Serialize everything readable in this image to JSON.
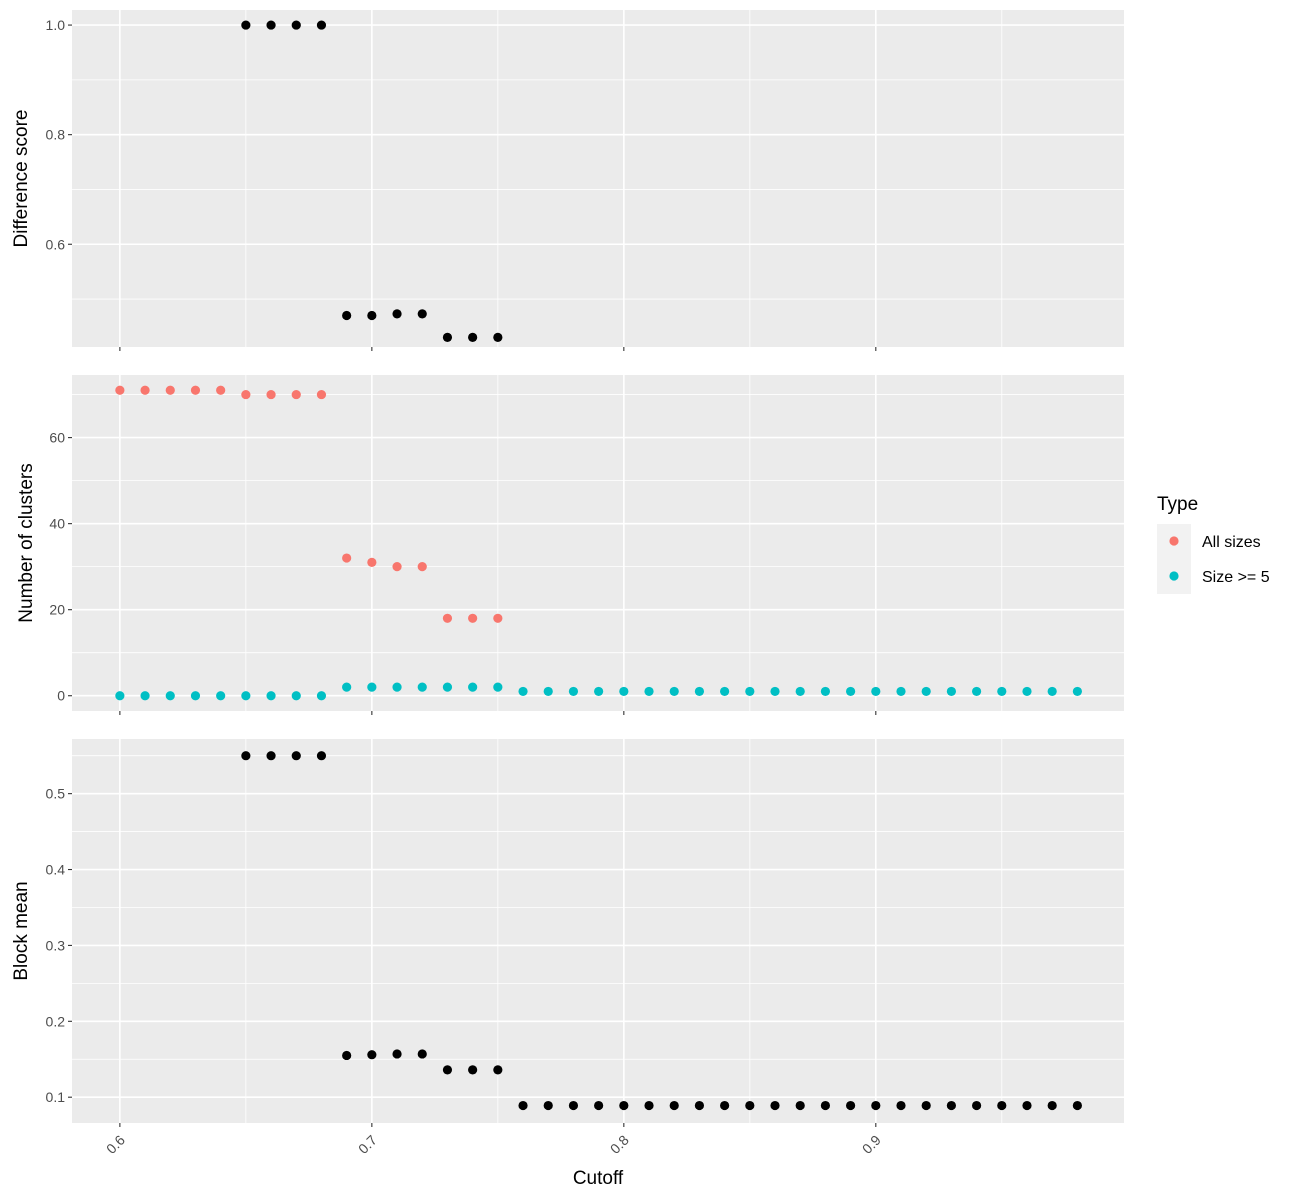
{
  "chart_data": {
    "type": "scatter",
    "xlabel": "Cutoff",
    "x_ticks": [
      "0.6",
      "0.7",
      "0.8",
      "0.9"
    ],
    "xlim": [
      0.581,
      0.9985
    ],
    "panels": [
      {
        "ylabel": "Difference score",
        "ylim": [
          0.4125,
          1.0275
        ],
        "y_ticks": [
          "0.6",
          "0.8",
          "1.0"
        ],
        "y_tick_values": [
          0.6,
          0.8,
          1.0
        ],
        "y_minor": [
          0.5,
          0.7,
          0.9
        ],
        "series": [
          {
            "color": "#000000",
            "x": [
              0.65,
              0.66,
              0.67,
              0.68,
              0.69,
              0.7,
              0.71,
              0.72,
              0.73,
              0.74,
              0.75
            ],
            "y": [
              1.0,
              1.0,
              1.0,
              1.0,
              0.47,
              0.47,
              0.473,
              0.473,
              0.43,
              0.43,
              0.43
            ]
          }
        ]
      },
      {
        "ylabel": "Number of clusters",
        "ylim": [
          -3.55,
          74.55
        ],
        "y_ticks": [
          "0",
          "20",
          "40",
          "60"
        ],
        "y_tick_values": [
          0,
          20,
          40,
          60
        ],
        "y_minor": [
          10,
          30,
          50,
          70
        ],
        "series": [
          {
            "name": "All sizes",
            "color": "#F8766D",
            "x": [
              0.6,
              0.61,
              0.62,
              0.63,
              0.64,
              0.65,
              0.66,
              0.67,
              0.68,
              0.69,
              0.7,
              0.71,
              0.72,
              0.73,
              0.74,
              0.75
            ],
            "y": [
              71,
              71,
              71,
              71,
              71,
              70,
              70,
              70,
              70,
              32,
              31,
              30,
              30,
              18,
              18,
              18
            ]
          },
          {
            "name": "Size >= 5",
            "color": "#00BFC4",
            "x": [
              0.6,
              0.61,
              0.62,
              0.63,
              0.64,
              0.65,
              0.66,
              0.67,
              0.68,
              0.69,
              0.7,
              0.71,
              0.72,
              0.73,
              0.74,
              0.75,
              0.76,
              0.77,
              0.78,
              0.79,
              0.8,
              0.81,
              0.82,
              0.83,
              0.84,
              0.85,
              0.86,
              0.87,
              0.88,
              0.89,
              0.9,
              0.91,
              0.92,
              0.93,
              0.94,
              0.95,
              0.96,
              0.97,
              0.98
            ],
            "y": [
              0,
              0,
              0,
              0,
              0,
              0,
              0,
              0,
              0,
              2,
              2,
              2,
              2,
              2,
              2,
              2,
              1,
              1,
              1,
              1,
              1,
              1,
              1,
              1,
              1,
              1,
              1,
              1,
              1,
              1,
              1,
              1,
              1,
              1,
              1,
              1,
              1,
              1,
              1
            ]
          }
        ]
      },
      {
        "ylabel": "Block mean",
        "ylim": [
          0.066,
          0.572
        ],
        "y_ticks": [
          "0.1",
          "0.2",
          "0.3",
          "0.4",
          "0.5"
        ],
        "y_tick_values": [
          0.1,
          0.2,
          0.3,
          0.4,
          0.5
        ],
        "y_minor": [
          0.15,
          0.25,
          0.35,
          0.45,
          0.55
        ],
        "series": [
          {
            "color": "#000000",
            "x": [
              0.65,
              0.66,
              0.67,
              0.68,
              0.69,
              0.7,
              0.71,
              0.72,
              0.73,
              0.74,
              0.75,
              0.76,
              0.77,
              0.78,
              0.79,
              0.8,
              0.81,
              0.82,
              0.83,
              0.84,
              0.85,
              0.86,
              0.87,
              0.88,
              0.89,
              0.9,
              0.91,
              0.92,
              0.93,
              0.94,
              0.95,
              0.96,
              0.97,
              0.98
            ],
            "y": [
              0.55,
              0.55,
              0.55,
              0.55,
              0.155,
              0.156,
              0.157,
              0.157,
              0.136,
              0.136,
              0.136,
              0.089,
              0.089,
              0.089,
              0.089,
              0.089,
              0.089,
              0.089,
              0.089,
              0.089,
              0.089,
              0.089,
              0.089,
              0.089,
              0.089,
              0.089,
              0.089,
              0.089,
              0.089,
              0.089,
              0.089,
              0.089,
              0.089,
              0.089
            ]
          }
        ]
      }
    ],
    "legend": {
      "title": "Type",
      "placement": "right",
      "entries": [
        {
          "label": "All sizes",
          "color": "#F8766D"
        },
        {
          "label": "Size >= 5",
          "color": "#00BFC4"
        }
      ]
    },
    "panel_background": "#EBEBEB",
    "grid": true
  }
}
